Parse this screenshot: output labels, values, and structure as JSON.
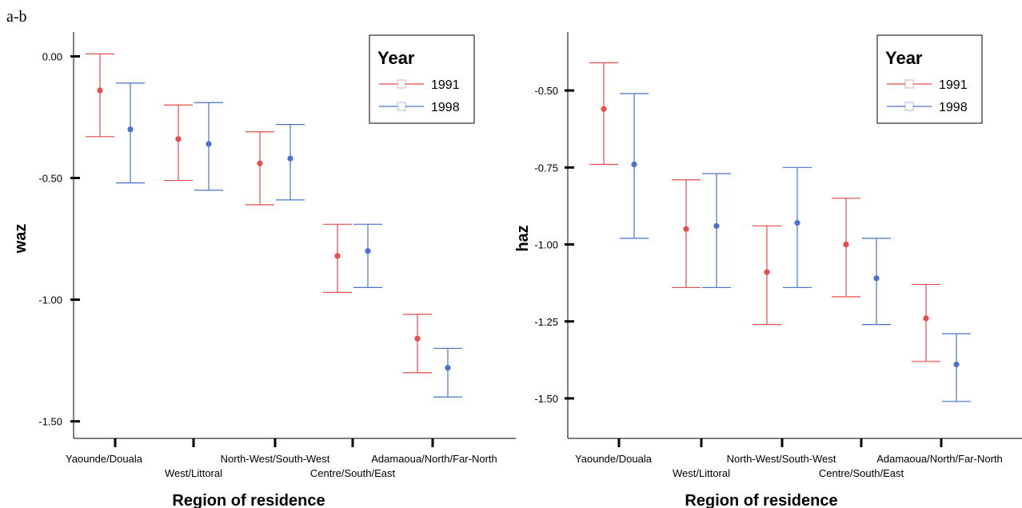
{
  "figure_label": "a-b",
  "chart_data": [
    {
      "type": "scatter",
      "subtype": "error-bar",
      "ylabel": "waz",
      "xlabel": "Region of residence",
      "categories": [
        "Yaounde/Douala",
        "West/Littoral",
        "North-West/South-West",
        "Centre/South/East",
        "Adamaoua/North/Far-North"
      ],
      "ylim": [
        -1.57,
        0.1
      ],
      "yticks": [
        0.0,
        -0.5,
        -1.0,
        -1.5
      ],
      "ytick_labels": [
        "0.00",
        "-0.50",
        "-1.00",
        "-1.50"
      ],
      "legend": {
        "title": "Year",
        "position": "top-right"
      },
      "series": [
        {
          "name": "1991",
          "color": "#e84c4c",
          "mean": [
            -0.14,
            -0.34,
            -0.44,
            -0.82,
            -1.16
          ],
          "lower": [
            -0.33,
            -0.51,
            -0.61,
            -0.97,
            -1.3
          ],
          "upper": [
            0.01,
            -0.2,
            -0.31,
            -0.69,
            -1.06
          ]
        },
        {
          "name": "1998",
          "color": "#4a72d4",
          "mean": [
            -0.3,
            -0.36,
            -0.42,
            -0.8,
            -1.28
          ],
          "lower": [
            -0.52,
            -0.55,
            -0.59,
            -0.95,
            -1.4
          ],
          "upper": [
            -0.11,
            -0.19,
            -0.28,
            -0.69,
            -1.2
          ]
        }
      ]
    },
    {
      "type": "scatter",
      "subtype": "error-bar",
      "ylabel": "haz",
      "xlabel": "Region of residence",
      "categories": [
        "Yaounde/Douala",
        "West/Littoral",
        "North-West/South-West",
        "Centre/South/East",
        "Adamaoua/North/Far-North"
      ],
      "ylim": [
        -1.63,
        -0.31
      ],
      "yticks": [
        -0.5,
        -0.75,
        -1.0,
        -1.25,
        -1.5
      ],
      "ytick_labels": [
        "-0.50",
        "-0.75",
        "-1.00",
        "-1.25",
        "-1.50"
      ],
      "legend": {
        "title": "Year",
        "position": "top-right"
      },
      "series": [
        {
          "name": "1991",
          "color": "#e84c4c",
          "mean": [
            -0.56,
            -0.95,
            -1.09,
            -1.0,
            -1.24
          ],
          "lower": [
            -0.74,
            -1.14,
            -1.26,
            -1.17,
            -1.38
          ],
          "upper": [
            -0.41,
            -0.79,
            -0.94,
            -0.85,
            -1.13
          ]
        },
        {
          "name": "1998",
          "color": "#4a72d4",
          "mean": [
            -0.74,
            -0.94,
            -0.93,
            -1.11,
            -1.39
          ],
          "lower": [
            -0.98,
            -1.14,
            -1.14,
            -1.26,
            -1.51
          ],
          "upper": [
            -0.51,
            -0.77,
            -0.75,
            -0.98,
            -1.29
          ]
        }
      ]
    }
  ]
}
